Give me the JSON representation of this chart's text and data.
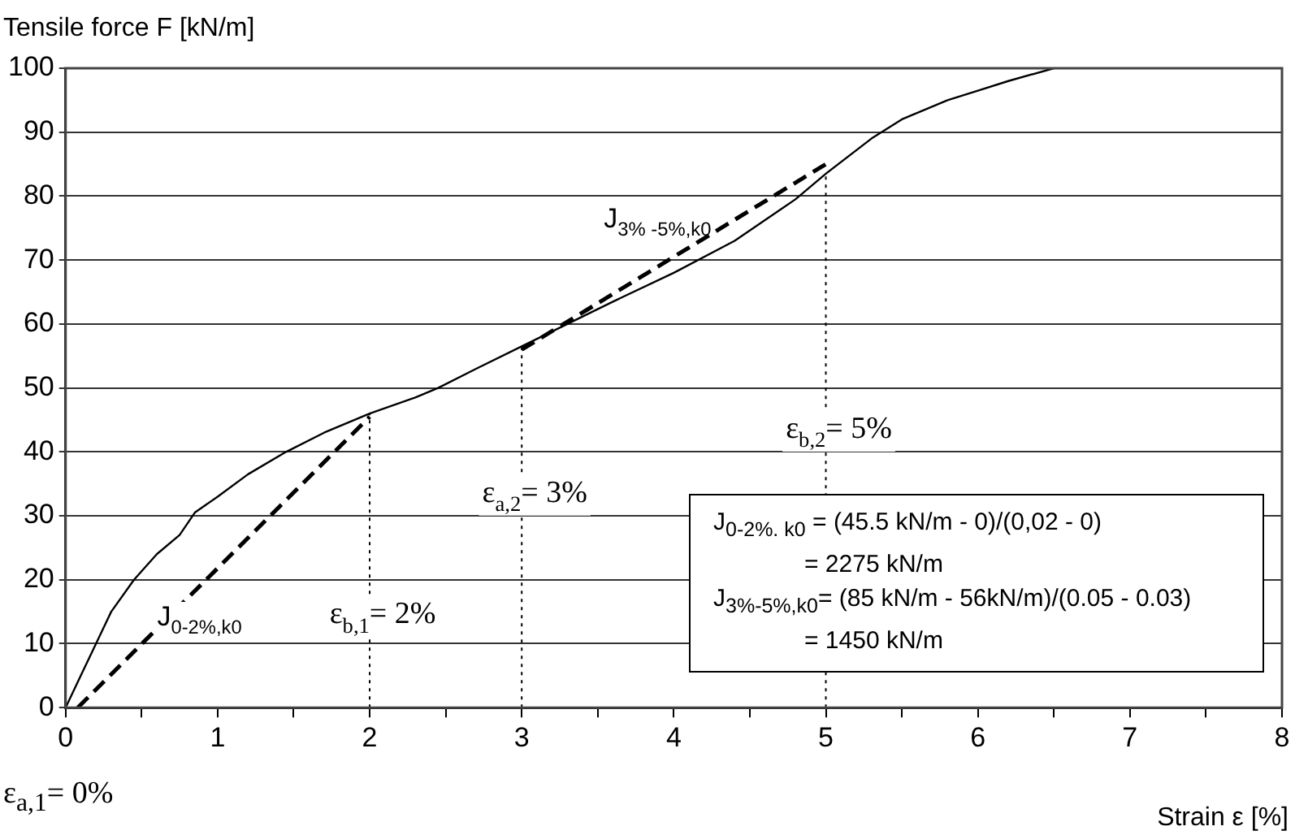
{
  "chart_data": {
    "type": "line",
    "ylabel": "Tensile force F [kN/m]",
    "xlabel": "Strain ε [%]",
    "xlim": [
      0,
      8
    ],
    "ylim": [
      0,
      100
    ],
    "xticks": [
      0,
      {
        "value": 0.5,
        "label": null
      },
      1,
      {
        "value": 1.5,
        "label": null
      },
      2,
      {
        "value": 2.5,
        "label": null
      },
      3,
      {
        "value": 3.5,
        "label": null
      },
      4,
      {
        "value": 4.5,
        "label": null
      },
      5,
      {
        "value": 5.5,
        "label": null
      },
      6,
      {
        "value": 6.5,
        "label": null
      },
      7,
      {
        "value": 7.5,
        "label": null
      },
      8
    ],
    "yticks": [
      0,
      10,
      20,
      30,
      40,
      50,
      60,
      70,
      80,
      90,
      100
    ],
    "grid": "y",
    "legend": false,
    "marker": "none",
    "series": [
      {
        "color": "#000000",
        "line_style": "solid",
        "x": [
          0,
          0.1,
          0.2,
          0.3,
          0.45,
          0.6,
          0.75,
          0.85,
          1.0,
          1.2,
          1.45,
          1.7,
          2.0,
          2.3,
          2.45,
          2.7,
          3.0,
          3.3,
          3.6,
          4.0,
          4.4,
          4.8,
          5.0,
          5.3,
          5.5,
          5.8,
          6.0,
          6.2,
          6.5
        ],
        "values": [
          0,
          5,
          10,
          15,
          20,
          24,
          27,
          30.5,
          33,
          36.5,
          40,
          43,
          46,
          48.5,
          50,
          53,
          56.5,
          60,
          63.5,
          68,
          73,
          79.5,
          83.5,
          89,
          92,
          95,
          96.5,
          98,
          100
        ]
      },
      {
        "name": "J$_{0-2%,k0}$",
        "color": "#000000",
        "line_style": "dashed",
        "x": [
          0.08,
          2
        ],
        "values": [
          0,
          45.5
        ]
      },
      {
        "name": "J$_{3% -5%,k0}$",
        "color": "#000000",
        "line_style": "dashed",
        "x": [
          3,
          5
        ],
        "values": [
          56,
          85
        ]
      }
    ],
    "ref_lines": [
      {
        "axis": "x",
        "value": 2,
        "color": "#000000",
        "line_style": "dotted"
      },
      {
        "axis": "x",
        "value": 3,
        "color": "#000000",
        "line_style": "dotted"
      },
      {
        "axis": "x",
        "value": 5,
        "color": "#000000",
        "line_style": "dotted"
      }
    ],
    "annotations": [
      "ε$_{a,1}$= 0%",
      {
        "text": "ε$_{b,1}$= 2%",
        "x": 2,
        "y": 15
      },
      {
        "text": "ε$_{a,2}$= 3%",
        "x": 3,
        "y": 34
      },
      {
        "text": "ε$_{b,2}$= 5%",
        "x": 5,
        "y": 44
      },
      "J$_{0-2%. k0}$ = (45.5 kN/m - 0)/(0,02 - 0)",
      "= 2275 kN/m",
      "J$_{3%-5%,k0}$= (85 kN/m - 56kN/m)/(0.05 - 0.03)",
      "= 1450 kN/m"
    ]
  }
}
